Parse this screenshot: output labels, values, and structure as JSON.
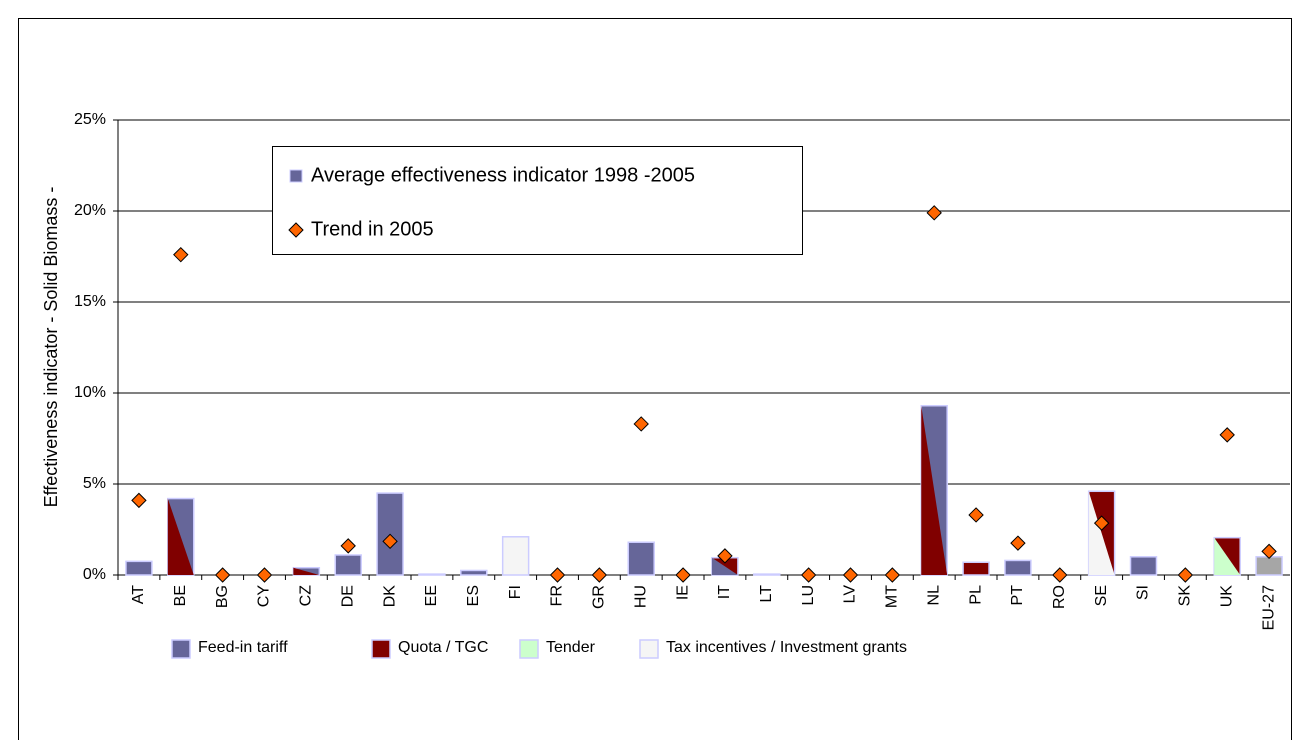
{
  "chart_data": {
    "type": "bar",
    "y_label": "Effectiveness indicator - Solid Biomass -",
    "categories": [
      "AT",
      "BE",
      "BG",
      "CY",
      "CZ",
      "DE",
      "DK",
      "EE",
      "ES",
      "FI",
      "FR",
      "GR",
      "HU",
      "IE",
      "IT",
      "LT",
      "LU",
      "LV",
      "MT",
      "NL",
      "PL",
      "PT",
      "RO",
      "SE",
      "SI",
      "SK",
      "UK",
      "EU-27"
    ],
    "series": [
      {
        "name": "Average effectiveness indicator 1998 -2005",
        "color": "#666699",
        "values": [
          0.75,
          4.2,
          0,
          0,
          0.4,
          1.1,
          4.5,
          0.05,
          0.25,
          2.1,
          0,
          0,
          1.8,
          0,
          0.95,
          0.05,
          0,
          0,
          0,
          9.3,
          0.7,
          0.8,
          0,
          4.6,
          1.0,
          0,
          2.05,
          1.0
        ],
        "colors": [
          "#666699",
          "#666699",
          "#666699",
          "#666699",
          "#666699",
          "#666699",
          "#666699",
          "#666699",
          "#666699",
          "#f5f5f5",
          "#666699",
          "#666699",
          "#666699",
          "#666699",
          "#800000",
          "#666699",
          "#666699",
          "#666699",
          "#666699",
          "#666699",
          "#800000",
          "#666699",
          "#666699",
          "#800000",
          "#666699",
          "#666699",
          "#800000",
          "#a6a6a6"
        ],
        "split_colors": [
          null,
          "#800000",
          null,
          null,
          "#800000",
          null,
          null,
          null,
          null,
          null,
          null,
          null,
          null,
          null,
          "#666699",
          null,
          null,
          null,
          null,
          "#800000",
          null,
          null,
          null,
          "#f5f5f5",
          null,
          null,
          "#ccffcc",
          null
        ]
      },
      {
        "name": "Trend in 2005",
        "type": "scatter",
        "color": "#ff6600",
        "values": [
          4.1,
          17.6,
          0,
          0,
          null,
          1.6,
          1.85,
          null,
          null,
          null,
          0,
          0,
          8.3,
          0,
          1.05,
          null,
          0,
          0,
          0,
          19.9,
          3.3,
          1.75,
          0,
          2.85,
          null,
          0,
          7.7,
          1.3
        ]
      }
    ],
    "policy_legend": [
      {
        "name": "Feed-in tariff",
        "color": "#666699"
      },
      {
        "name": "Quota / TGC",
        "color": "#800000"
      },
      {
        "name": "Tender",
        "color": "#ccffcc"
      },
      {
        "name": "Tax incentives / Investment grants",
        "color": "#f5f5f5"
      }
    ],
    "ylim": [
      0,
      25
    ],
    "yticks": [
      {
        "value": 0,
        "label": "0%"
      },
      {
        "value": 5,
        "label": "5%"
      },
      {
        "value": 10,
        "label": "10%"
      },
      {
        "value": 15,
        "label": "15%"
      },
      {
        "value": 20,
        "label": "20%"
      },
      {
        "value": 25,
        "label": "25%"
      }
    ],
    "grid": true
  }
}
